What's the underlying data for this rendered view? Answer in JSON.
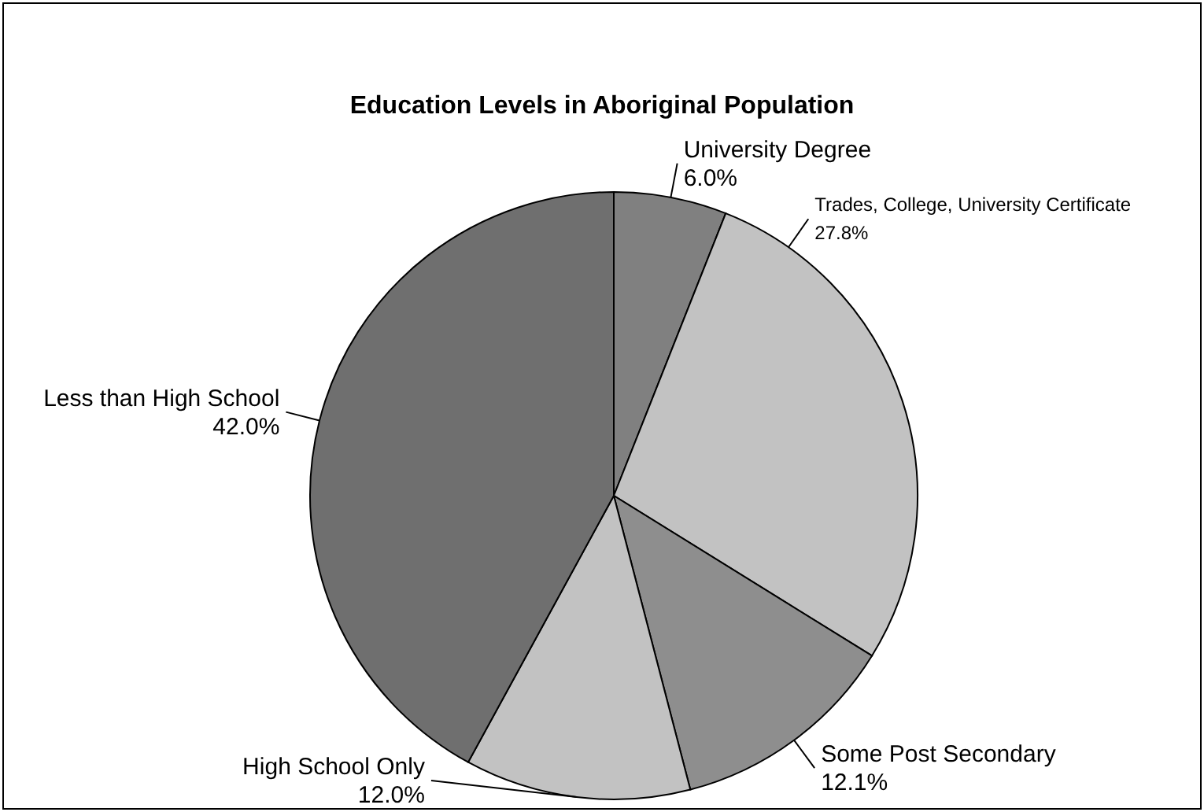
{
  "chart_data": {
    "type": "pie",
    "title": "Education Levels in Aboriginal Population",
    "categories": [
      "University Degree",
      "Trades, College, University Certificate",
      "Some Post Secondary",
      "High School Only",
      "Less than High School"
    ],
    "values": [
      6.0,
      27.8,
      12.1,
      12.0,
      42.0
    ],
    "value_labels": [
      "6.0%",
      "27.8%",
      "12.1%",
      "12.0%",
      "42.0%"
    ],
    "colors": [
      "#808080",
      "#c2c2c2",
      "#8e8e8e",
      "#c2c2c2",
      "#6f6f6f"
    ]
  }
}
